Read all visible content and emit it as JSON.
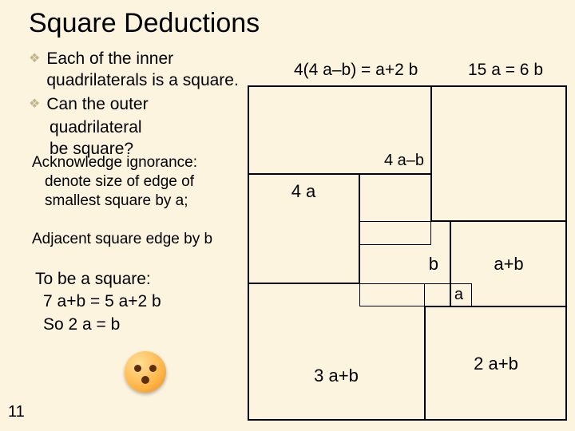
{
  "title": "Square Deductions",
  "bullets": {
    "b1": "Each of the inner quadrilaterals is a square.",
    "b2a": "Can the outer",
    "b2b": "quadrilateral",
    "b2c": "be square?"
  },
  "notes": {
    "n1a": "Acknowledge ignorance:",
    "n1b": "denote size of edge of",
    "n1c": "smallest square by a;",
    "n2": "Adjacent square edge by b"
  },
  "conclude": {
    "c1": "To be a square:",
    "c2": "7 a+b = 5 a+2 b",
    "c3": "So 2 a = b"
  },
  "pagenum": "11",
  "diagram": {
    "eq1": "4(4 a–b) = a+2 b",
    "eq2": "15 a = 6 b",
    "lab_4ab": "4 a–b",
    "lab_4a": "4 a",
    "lab_b": "b",
    "lab_ab": "a+b",
    "lab_a": "a",
    "lab_3ab": "3 a+b",
    "lab_2ab": "2 a+b"
  },
  "colors": {
    "background": "#fcf4df",
    "bullet": "#c3b58a",
    "border": "#000000"
  }
}
